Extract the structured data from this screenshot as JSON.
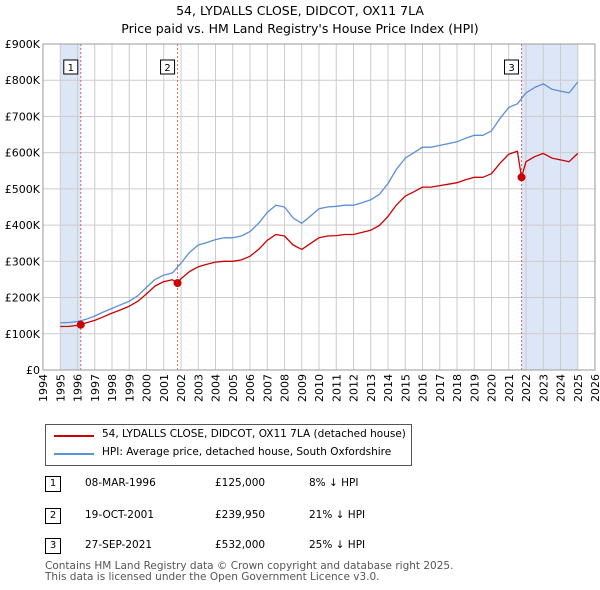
{
  "title_line1": "54, LYDALLS CLOSE, DIDCOT, OX11 7LA",
  "title_line2": "Price paid vs. HM Land Registry's House Price Index (HPI)",
  "colors": {
    "property": "#cc0000",
    "hpi": "#5b8fd6",
    "shade": "#dde6f6",
    "grid": "#cccccc",
    "sale_line": "#dd6666"
  },
  "legend": {
    "property_label": "54, LYDALLS CLOSE, DIDCOT, OX11 7LA (detached house)",
    "hpi_label": "HPI: Average price, detached house, South Oxfordshire"
  },
  "sales": [
    {
      "num": "1",
      "date": "08-MAR-1996",
      "price": "£125,000",
      "hpi": "8% ↓ HPI"
    },
    {
      "num": "2",
      "date": "19-OCT-2001",
      "price": "£239,950",
      "hpi": "21% ↓ HPI"
    },
    {
      "num": "3",
      "date": "27-SEP-2021",
      "price": "£532,000",
      "hpi": "25% ↓ HPI"
    }
  ],
  "footer_line1": "Contains HM Land Registry data © Crown copyright and database right 2025.",
  "footer_line2": "This data is licensed under the Open Government Licence v3.0.",
  "chart_data": {
    "type": "line",
    "title": "54, LYDALLS CLOSE, DIDCOT, OX11 7LA — Price paid vs. HM Land Registry's House Price Index (HPI)",
    "xlim": [
      1994,
      2026
    ],
    "ylim": [
      0,
      900000
    ],
    "x_ticks": [
      1994,
      1995,
      1996,
      1997,
      1998,
      1999,
      2000,
      2001,
      2002,
      2003,
      2004,
      2005,
      2006,
      2007,
      2008,
      2009,
      2010,
      2011,
      2012,
      2013,
      2014,
      2015,
      2016,
      2017,
      2018,
      2019,
      2020,
      2021,
      2022,
      2023,
      2024,
      2025,
      2026
    ],
    "y_ticks": [
      {
        "value": 0,
        "label": "£0"
      },
      {
        "value": 100000,
        "label": "£100K"
      },
      {
        "value": 200000,
        "label": "£200K"
      },
      {
        "value": 300000,
        "label": "£300K"
      },
      {
        "value": 400000,
        "label": "£400K"
      },
      {
        "value": 500000,
        "label": "£500K"
      },
      {
        "value": 600000,
        "label": "£600K"
      },
      {
        "value": 700000,
        "label": "£700K"
      },
      {
        "value": 800000,
        "label": "£800K"
      },
      {
        "value": 900000,
        "label": "£900K"
      }
    ],
    "sale_points": [
      {
        "num": "1",
        "x": 1996.19,
        "y": 125000
      },
      {
        "num": "2",
        "x": 2001.8,
        "y": 239950
      },
      {
        "num": "3",
        "x": 2021.74,
        "y": 532000
      }
    ],
    "shaded_ranges": [
      [
        1995.0,
        1996.19
      ],
      [
        2001.8,
        2001.8
      ],
      [
        2021.74,
        2025.0
      ]
    ],
    "series": [
      {
        "name": "HPI: Average price, detached house, South Oxfordshire",
        "x": [
          1995.0,
          1995.5,
          1996.0,
          1996.5,
          1997.0,
          1997.5,
          1998.0,
          1998.5,
          1999.0,
          1999.5,
          2000.0,
          2000.5,
          2001.0,
          2001.5,
          2002.0,
          2002.5,
          2003.0,
          2003.5,
          2004.0,
          2004.5,
          2005.0,
          2005.5,
          2006.0,
          2006.5,
          2007.0,
          2007.5,
          2008.0,
          2008.5,
          2009.0,
          2009.5,
          2010.0,
          2010.5,
          2011.0,
          2011.5,
          2012.0,
          2012.5,
          2013.0,
          2013.5,
          2014.0,
          2014.5,
          2015.0,
          2015.5,
          2016.0,
          2016.5,
          2017.0,
          2017.5,
          2018.0,
          2018.5,
          2019.0,
          2019.5,
          2020.0,
          2020.5,
          2021.0,
          2021.5,
          2022.0,
          2022.5,
          2023.0,
          2023.5,
          2024.0,
          2024.5,
          2025.0
        ],
        "values": [
          130000,
          131000,
          134000,
          140000,
          149000,
          160000,
          170000,
          180000,
          190000,
          205000,
          228000,
          250000,
          262000,
          268000,
          295000,
          325000,
          345000,
          352000,
          360000,
          365000,
          365000,
          370000,
          382000,
          405000,
          435000,
          455000,
          450000,
          420000,
          405000,
          425000,
          445000,
          450000,
          452000,
          455000,
          455000,
          462000,
          470000,
          485000,
          515000,
          555000,
          585000,
          600000,
          615000,
          615000,
          620000,
          625000,
          630000,
          640000,
          648000,
          648000,
          660000,
          695000,
          725000,
          735000,
          765000,
          780000,
          790000,
          775000,
          770000,
          765000,
          795000
        ]
      },
      {
        "name": "54, LYDALLS CLOSE, DIDCOT, OX11 7LA (detached house)",
        "x": [
          1995.0,
          1995.5,
          1996.0,
          1996.19,
          1996.5,
          1997.0,
          1997.5,
          1998.0,
          1998.5,
          1999.0,
          1999.5,
          2000.0,
          2000.5,
          2001.0,
          2001.5,
          2001.8,
          2002.0,
          2002.5,
          2003.0,
          2003.5,
          2004.0,
          2004.5,
          2005.0,
          2005.5,
          2006.0,
          2006.5,
          2007.0,
          2007.5,
          2008.0,
          2008.5,
          2009.0,
          2009.5,
          2010.0,
          2010.5,
          2011.0,
          2011.5,
          2012.0,
          2012.5,
          2013.0,
          2013.5,
          2014.0,
          2014.5,
          2015.0,
          2015.5,
          2016.0,
          2016.5,
          2017.0,
          2017.5,
          2018.0,
          2018.5,
          2019.0,
          2019.5,
          2020.0,
          2020.5,
          2021.0,
          2021.5,
          2021.74,
          2022.0,
          2022.5,
          2023.0,
          2023.5,
          2024.0,
          2024.5,
          2025.0
        ],
        "values": [
          120000,
          120500,
          123000,
          125000,
          130000,
          137000,
          147000,
          157000,
          166000,
          176000,
          190000,
          210000,
          232000,
          244000,
          249000,
          239950,
          252000,
          272000,
          285000,
          292000,
          298000,
          300000,
          300000,
          304000,
          314000,
          333000,
          358000,
          374000,
          370000,
          345000,
          333000,
          349000,
          365000,
          370000,
          371000,
          374000,
          374000,
          380000,
          386000,
          399000,
          424000,
          456000,
          480000,
          492000,
          505000,
          505000,
          509000,
          513000,
          517000,
          525000,
          532000,
          532000,
          542000,
          571000,
          596000,
          604000,
          532000,
          575000,
          589000,
          598000,
          585000,
          580000,
          575000,
          598000
        ]
      }
    ]
  }
}
